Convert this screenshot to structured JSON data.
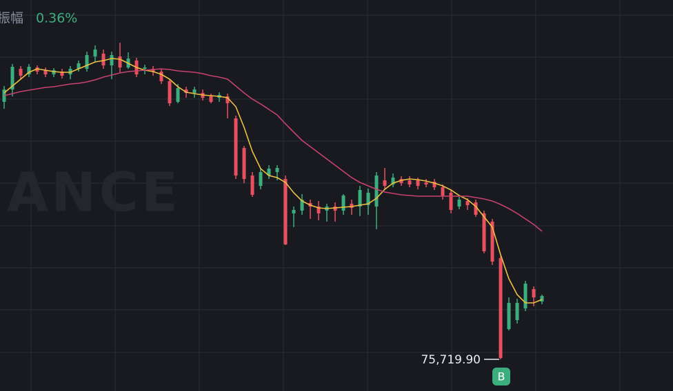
{
  "header": {
    "label": "振幅",
    "value": "0.36%"
  },
  "watermark": "BINANCE",
  "chart_data": {
    "type": "candlestick",
    "up_color": "#3cae7e",
    "down_color": "#e8505f",
    "open": [
      77590,
      77680,
      77830,
      77790,
      77840,
      77820,
      77790,
      77810,
      77790,
      77830,
      77830,
      77920,
      77940,
      77855,
      77920,
      77840,
      77890,
      77830,
      77830,
      77810,
      77740,
      77590,
      77680,
      77655,
      77655,
      77630,
      77620,
      77630,
      77470,
      77255,
      77055,
      76980,
      77055,
      77080,
      77030,
      76780,
      76800,
      76855,
      76830,
      76800,
      76830,
      76800,
      76850,
      76830,
      76840,
      76830,
      77020,
      76990,
      77030,
      77020,
      77020,
      77005,
      77010,
      76970,
      76930,
      76830,
      76870,
      76860,
      76780,
      76720,
      76455,
      75940,
      76005,
      76090,
      76230,
      76140
    ],
    "high": [
      77705,
      77865,
      77850,
      77865,
      77855,
      77840,
      77835,
      77830,
      77850,
      77890,
      77955,
      78000,
      77970,
      77955,
      78020,
      77950,
      77910,
      77860,
      77850,
      77830,
      77755,
      77720,
      77700,
      77700,
      77680,
      77650,
      77660,
      77650,
      77490,
      77270,
      77080,
      77105,
      77130,
      77130,
      77055,
      76830,
      76920,
      76880,
      76870,
      76850,
      76860,
      76920,
      76880,
      76980,
      76960,
      77080,
      77110,
      77070,
      77050,
      77050,
      77040,
      77030,
      77030,
      76990,
      76950,
      76900,
      76890,
      76880,
      76800,
      76740,
      76470,
      76170,
      76160,
      76290,
      76250,
      76190
    ],
    "low": [
      77540,
      77630,
      77755,
      77770,
      77790,
      77770,
      77770,
      77760,
      77755,
      77810,
      77810,
      77880,
      77830,
      77755,
      77805,
      77830,
      77770,
      77790,
      77780,
      77720,
      77560,
      77580,
      77620,
      77620,
      77600,
      77580,
      77590,
      77470,
      77030,
      77000,
      76900,
      76955,
      77030,
      77020,
      76550,
      76680,
      76770,
      76740,
      76730,
      76720,
      76720,
      76770,
      76770,
      76760,
      76770,
      76665,
      76950,
      76970,
      76980,
      76970,
      76955,
      76970,
      76950,
      76880,
      76780,
      76810,
      76805,
      76755,
      76490,
      76405,
      75719.9,
      75930,
      75980,
      76070,
      76105,
      76120
    ],
    "close": [
      77680,
      77845,
      77780,
      77845,
      77810,
      77790,
      77820,
      77780,
      77830,
      77870,
      77930,
      77970,
      77855,
      77930,
      77840,
      77905,
      77790,
      77840,
      77810,
      77740,
      77580,
      77690,
      77655,
      77680,
      77620,
      77590,
      77640,
      77580,
      77055,
      77030,
      76915,
      77080,
      77105,
      77110,
      76555,
      76805,
      76880,
      76830,
      76780,
      76830,
      76800,
      76910,
      76820,
      76950,
      76930,
      77055,
      76980,
      77040,
      77000,
      76990,
      76980,
      76990,
      76970,
      76905,
      76805,
      76880,
      76840,
      76770,
      76505,
      76430,
      75730,
      76130,
      76130,
      76270,
      76170,
      76180
    ],
    "overlays": [
      {
        "color": "#f0c040",
        "values": [
          77655,
          77705,
          77755,
          77805,
          77830,
          77820,
          77810,
          77805,
          77805,
          77830,
          77855,
          77880,
          77890,
          77905,
          77900,
          77870,
          77840,
          77820,
          77810,
          77790,
          77755,
          77700,
          77660,
          77650,
          77640,
          77635,
          77630,
          77620,
          77555,
          77405,
          77230,
          77105,
          77055,
          77040,
          77005,
          76930,
          76870,
          76840,
          76820,
          76815,
          76820,
          76825,
          76830,
          76840,
          76850,
          76890,
          76955,
          77000,
          77020,
          77030,
          77025,
          77015,
          77000,
          76980,
          76950,
          76910,
          76880,
          76830,
          76755,
          76680,
          76480,
          76305,
          76190,
          76130,
          76130,
          76155
        ]
      },
      {
        "color": "#c8426e",
        "values": [
          77635,
          77650,
          77665,
          77675,
          77685,
          77695,
          77700,
          77710,
          77720,
          77725,
          77735,
          77750,
          77770,
          77785,
          77800,
          77810,
          77815,
          77820,
          77825,
          77830,
          77825,
          77815,
          77810,
          77805,
          77795,
          77780,
          77770,
          77755,
          77705,
          77655,
          77610,
          77575,
          77535,
          77495,
          77430,
          77370,
          77310,
          77265,
          77220,
          77175,
          77130,
          77085,
          77040,
          77005,
          76980,
          76955,
          76935,
          76925,
          76915,
          76910,
          76905,
          76905,
          76905,
          76905,
          76905,
          76905,
          76905,
          76895,
          76885,
          76870,
          76845,
          76815,
          76780,
          76740,
          76700,
          76650
        ]
      }
    ],
    "ylim": [
      75490,
      78330
    ],
    "ygrid": [
      78220,
      77915,
      77610,
      77305,
      77000,
      76690,
      76385,
      76080,
      75770
    ],
    "grid": true,
    "low_label": "75,719.90",
    "trade_marker": "B"
  }
}
